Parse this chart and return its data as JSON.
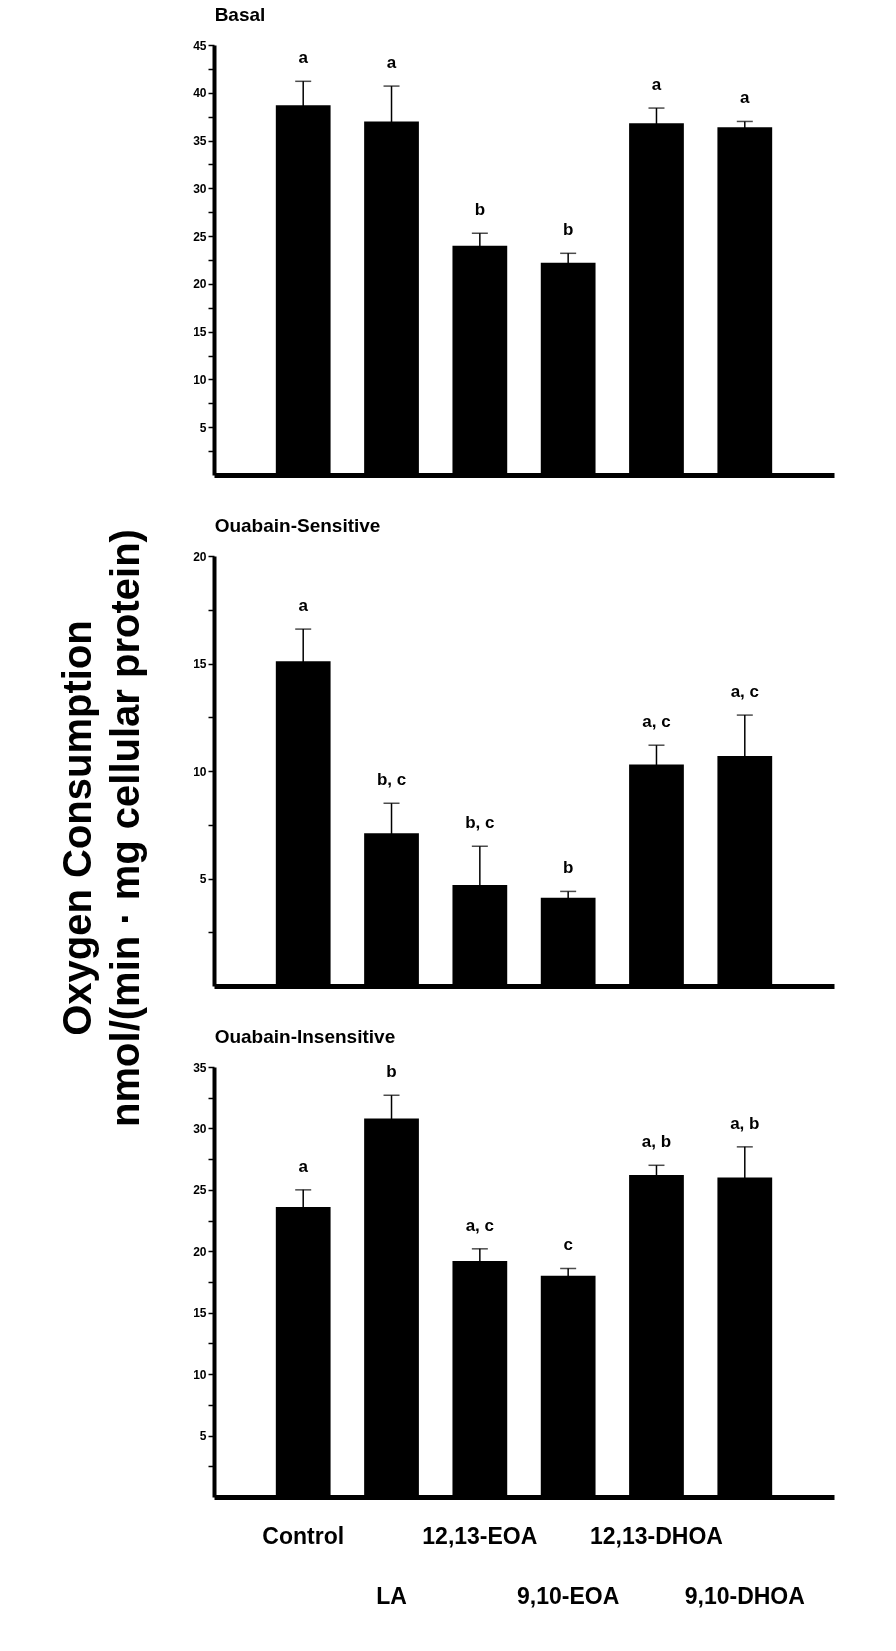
{
  "chart_data": [
    {
      "type": "bar",
      "title": "Basal",
      "categories": [
        "Control",
        "LA",
        "12,13-EOA",
        "9,10-EOA",
        "12,13-DHOA",
        "9,10-DHOA"
      ],
      "series": [
        {
          "color": "#000000",
          "values": [
            38.7,
            37.0,
            24.0,
            22.2,
            36.8,
            36.4
          ],
          "errors": [
            2.5,
            3.7,
            1.3,
            1.0,
            1.6,
            0.6
          ]
        }
      ],
      "ylim": [
        0,
        45
      ],
      "yticks": [
        {
          "value": 2.5,
          "label": null
        },
        5,
        {
          "value": 7.5,
          "label": null
        },
        10,
        {
          "value": 12.5,
          "label": null
        },
        15,
        {
          "value": 17.5,
          "label": null
        },
        20,
        {
          "value": 22.5,
          "label": null
        },
        25,
        {
          "value": 27.5,
          "label": null
        },
        30,
        {
          "value": 32.5,
          "label": null
        },
        35,
        {
          "value": 37.5,
          "label": null
        },
        40,
        {
          "value": 42.5,
          "label": null
        },
        45
      ],
      "annotations": [
        {
          "text": "a",
          "x": "Control",
          "y": 41.2
        },
        {
          "text": "a",
          "x": "LA",
          "y": 40.7
        },
        {
          "text": "b",
          "x": "12,13-EOA",
          "y": 25.3
        },
        {
          "text": "b",
          "x": "9,10-EOA",
          "y": 23.2
        },
        {
          "text": "a",
          "x": "12,13-DHOA",
          "y": 38.4
        },
        {
          "text": "a",
          "x": "9,10-DHOA",
          "y": 37.0
        }
      ],
      "tick_labels": "y",
      "grid": false
    },
    {
      "type": "bar",
      "title": "Ouabain-Sensitive",
      "ylabel": "Oxygen Consumption\nnmol/(min · mg cellular protein)",
      "categories": [
        "Control",
        "LA",
        "12,13-EOA",
        "9,10-EOA",
        "12,13-DHOA",
        "9,10-DHOA"
      ],
      "series": [
        {
          "color": "#000000",
          "values": [
            15.1,
            7.1,
            4.7,
            4.1,
            10.3,
            10.7
          ],
          "errors": [
            1.5,
            1.4,
            1.8,
            0.3,
            0.9,
            1.9
          ]
        }
      ],
      "ylim": [
        0,
        20
      ],
      "yticks": [
        {
          "value": 2.5,
          "label": null
        },
        5,
        {
          "value": 7.5,
          "label": null
        },
        10,
        {
          "value": 12.5,
          "label": null
        },
        15,
        {
          "value": 17.5,
          "label": null
        },
        20
      ],
      "annotations": [
        {
          "text": "a",
          "x": "Control",
          "y": 16.6
        },
        {
          "text": "b, c",
          "x": "LA",
          "y": 8.5
        },
        {
          "text": "b, c",
          "x": "12,13-EOA",
          "y": 6.5
        },
        {
          "text": "b",
          "x": "9,10-EOA",
          "y": 4.4
        },
        {
          "text": "a, c",
          "x": "12,13-DHOA",
          "y": 11.2
        },
        {
          "text": "a, c",
          "x": "9,10-DHOA",
          "y": 12.6
        }
      ],
      "tick_labels": "y",
      "grid": false
    },
    {
      "type": "bar",
      "title": "Ouabain-Insensitive",
      "categories": [
        "Control",
        "LA",
        "12,13-EOA",
        "9,10-EOA",
        "12,13-DHOA",
        "9,10-DHOA"
      ],
      "series": [
        {
          "color": "#000000",
          "values": [
            23.6,
            30.8,
            19.2,
            18.0,
            26.2,
            26.0
          ],
          "errors": [
            1.4,
            1.9,
            1.0,
            0.6,
            0.8,
            2.5
          ]
        }
      ],
      "ylim": [
        0,
        35
      ],
      "yticks": [
        {
          "value": 2.5,
          "label": null
        },
        5,
        {
          "value": 7.5,
          "label": null
        },
        10,
        {
          "value": 12.5,
          "label": null
        },
        15,
        {
          "value": 17.5,
          "label": null
        },
        20,
        {
          "value": 22.5,
          "label": null
        },
        25,
        {
          "value": 27.5,
          "label": null
        },
        30,
        {
          "value": 32.5,
          "label": null
        },
        35
      ],
      "annotations": [
        {
          "text": "a",
          "x": "Control",
          "y": 25.0
        },
        {
          "text": "b",
          "x": "LA",
          "y": 32.7
        },
        {
          "text": "a, c",
          "x": "12,13-EOA",
          "y": 20.2
        },
        {
          "text": "c",
          "x": "9,10-EOA",
          "y": 18.6
        },
        {
          "text": "a, b",
          "x": "12,13-DHOA",
          "y": 27.0
        },
        {
          "text": "a, b",
          "x": "9,10-DHOA",
          "y": 28.5
        }
      ],
      "grid": false
    }
  ]
}
